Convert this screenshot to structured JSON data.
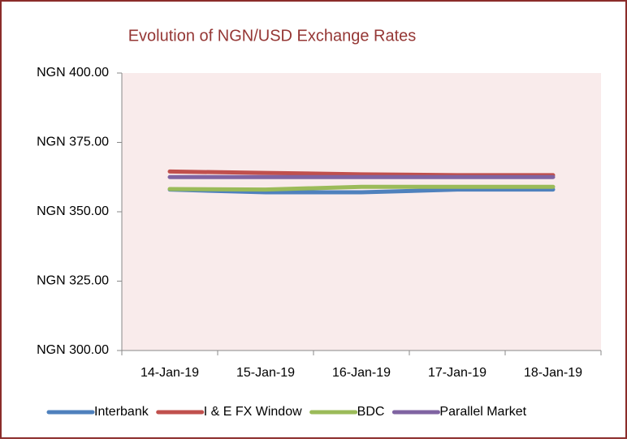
{
  "chart_data": {
    "type": "line",
    "title": "Evolution of NGN/USD Exchange Rates",
    "categories": [
      "14-Jan-19",
      "15-Jan-19",
      "16-Jan-19",
      "17-Jan-19",
      "18-Jan-19"
    ],
    "series": [
      {
        "name": "Interbank",
        "color": "#4f81bd",
        "values": [
          358.0,
          357.0,
          357.0,
          358.0,
          358.0
        ]
      },
      {
        "name": "I & E FX Window",
        "color": "#c0504d",
        "values": [
          364.5,
          364.0,
          363.5,
          363.2,
          363.2
        ]
      },
      {
        "name": "BDC",
        "color": "#9bbb59",
        "values": [
          358.2,
          358.0,
          359.0,
          359.0,
          359.0
        ]
      },
      {
        "name": "Parallel Market",
        "color": "#8064a2",
        "values": [
          362.5,
          362.5,
          362.5,
          362.5,
          362.5
        ]
      }
    ],
    "ylim": [
      300,
      400
    ],
    "yticks": [
      {
        "value": 300,
        "label": "NGN 300.00"
      },
      {
        "value": 325,
        "label": "NGN 325.00"
      },
      {
        "value": 350,
        "label": "NGN 350.00"
      },
      {
        "value": 375,
        "label": "NGN 375.00"
      },
      {
        "value": 400,
        "label": "NGN 400.00"
      }
    ],
    "grid": false,
    "legend": "bottom"
  }
}
